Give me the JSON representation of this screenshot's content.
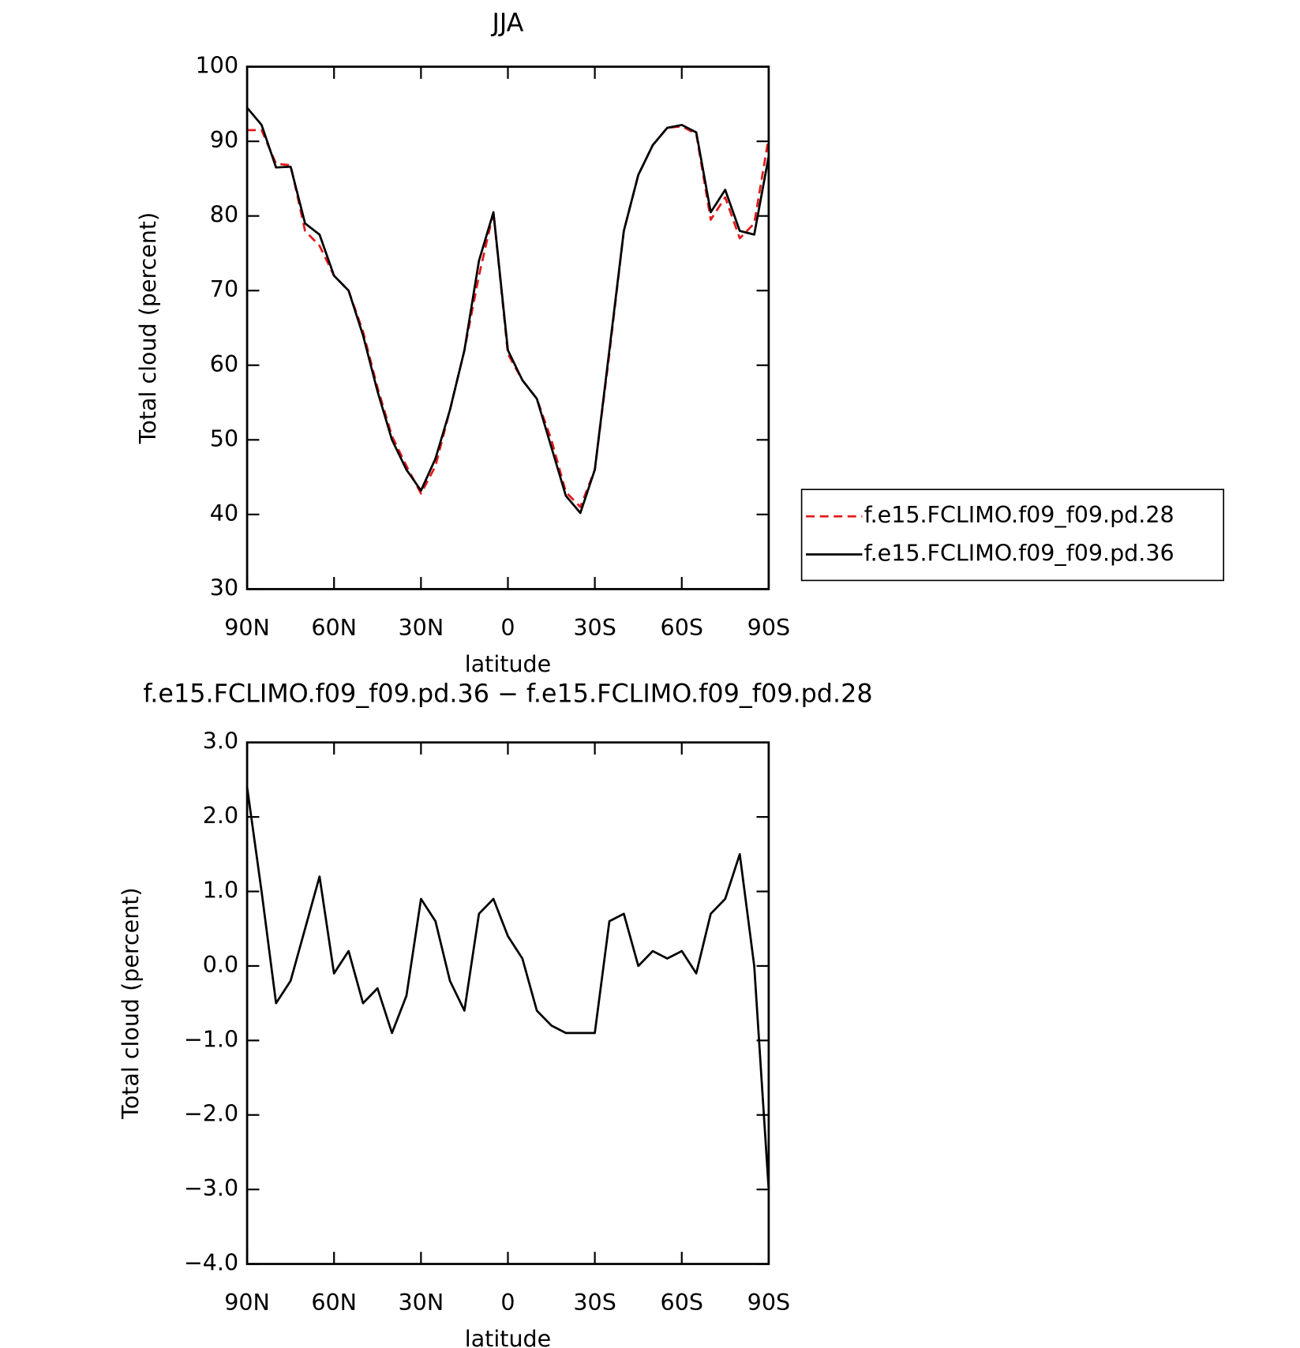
{
  "chart_data": [
    {
      "type": "line",
      "title": "JJA",
      "xlabel": "latitude",
      "ylabel": "Total cloud (percent)",
      "xlim": [
        90,
        -90
      ],
      "ylim": [
        30,
        100
      ],
      "xticks": [
        {
          "value": 90,
          "label": "90N"
        },
        {
          "value": 60,
          "label": "60N"
        },
        {
          "value": 30,
          "label": "30N"
        },
        0,
        {
          "value": -30,
          "label": "30S"
        },
        {
          "value": -60,
          "label": "60S"
        },
        {
          "value": -90,
          "label": "90S"
        }
      ],
      "yticks": [
        30,
        40,
        50,
        60,
        70,
        80,
        90,
        100
      ],
      "x": [
        90,
        85,
        80,
        75,
        70,
        65,
        60,
        55,
        50,
        45,
        40,
        35,
        30,
        25,
        20,
        15,
        10,
        5,
        0,
        -5,
        -10,
        -15,
        -20,
        -25,
        -30,
        -35,
        -40,
        -45,
        -50,
        -55,
        -60,
        -65,
        -70,
        -75,
        -80,
        -85,
        -90
      ],
      "series": [
        {
          "name": "f.e15.FCLIMO.f09_f09.pd.28",
          "color": "#e31a1c",
          "dash": true,
          "values": [
            91.5,
            91.5,
            87,
            86.8,
            78,
            76,
            72,
            70,
            64.5,
            57,
            50.5,
            46.5,
            42.8,
            46.5,
            54,
            62,
            72,
            80.5,
            61.5,
            58,
            55.5,
            50,
            43,
            41,
            46,
            61.5,
            78,
            85.5,
            89.5,
            91.8,
            92,
            91,
            79.5,
            82.5,
            77,
            79,
            90.5
          ]
        },
        {
          "name": "f.e15.FCLIMO.f09_f09.pd.36",
          "color": "#000000",
          "dash": false,
          "values": [
            94.5,
            92.2,
            86.5,
            86.6,
            79,
            77.5,
            72,
            70,
            64,
            56.5,
            50,
            46,
            43.2,
            47.5,
            54,
            62,
            74,
            80.5,
            62,
            58,
            55.5,
            49,
            42.5,
            40.2,
            46,
            62,
            78,
            85.5,
            89.5,
            91.8,
            92.2,
            91.2,
            80.5,
            83.5,
            78,
            77.5,
            88
          ]
        }
      ]
    },
    {
      "type": "line",
      "title": "f.e15.FCLIMO.f09_f09.pd.36 − f.e15.FCLIMO.f09_f09.pd.28",
      "xlabel": "latitude",
      "ylabel": "Total cloud (percent)",
      "xlim": [
        90,
        -90
      ],
      "ylim": [
        -4,
        3
      ],
      "xticks": [
        {
          "value": 90,
          "label": "90N"
        },
        {
          "value": 60,
          "label": "60N"
        },
        {
          "value": 30,
          "label": "30N"
        },
        0,
        {
          "value": -30,
          "label": "30S"
        },
        {
          "value": -60,
          "label": "60S"
        },
        {
          "value": -90,
          "label": "90S"
        }
      ],
      "yticks": [
        {
          "value": -4,
          "label": "−4.0"
        },
        {
          "value": -3,
          "label": "−3.0"
        },
        {
          "value": -2,
          "label": "−2.0"
        },
        {
          "value": -1,
          "label": "−1.0"
        },
        {
          "value": 0,
          "label": "0.0"
        },
        {
          "value": 1,
          "label": "1.0"
        },
        {
          "value": 2,
          "label": "2.0"
        },
        {
          "value": 3,
          "label": "3.0"
        }
      ],
      "x": [
        90,
        85,
        80,
        75,
        70,
        65,
        60,
        55,
        50,
        45,
        40,
        35,
        30,
        25,
        20,
        15,
        10,
        5,
        0,
        -5,
        -10,
        -15,
        -20,
        -25,
        -30,
        -35,
        -40,
        -45,
        -50,
        -55,
        -60,
        -65,
        -70,
        -75,
        -80,
        -85,
        -90
      ],
      "values": [
        2.4,
        1.0,
        -0.5,
        -0.2,
        0.5,
        1.2,
        -0.1,
        0.2,
        -0.5,
        -0.3,
        -0.9,
        -0.4,
        0.9,
        0.6,
        -0.2,
        -0.6,
        0.7,
        0.9,
        0.4,
        0.1,
        -0.6,
        -0.8,
        -0.9,
        -0.9,
        -0.9,
        0.6,
        0.7,
        0.0,
        0.2,
        0.1,
        0.2,
        -0.1,
        0.7,
        0.9,
        1.5,
        0.0,
        -3.0
      ],
      "color": "#000000"
    }
  ]
}
